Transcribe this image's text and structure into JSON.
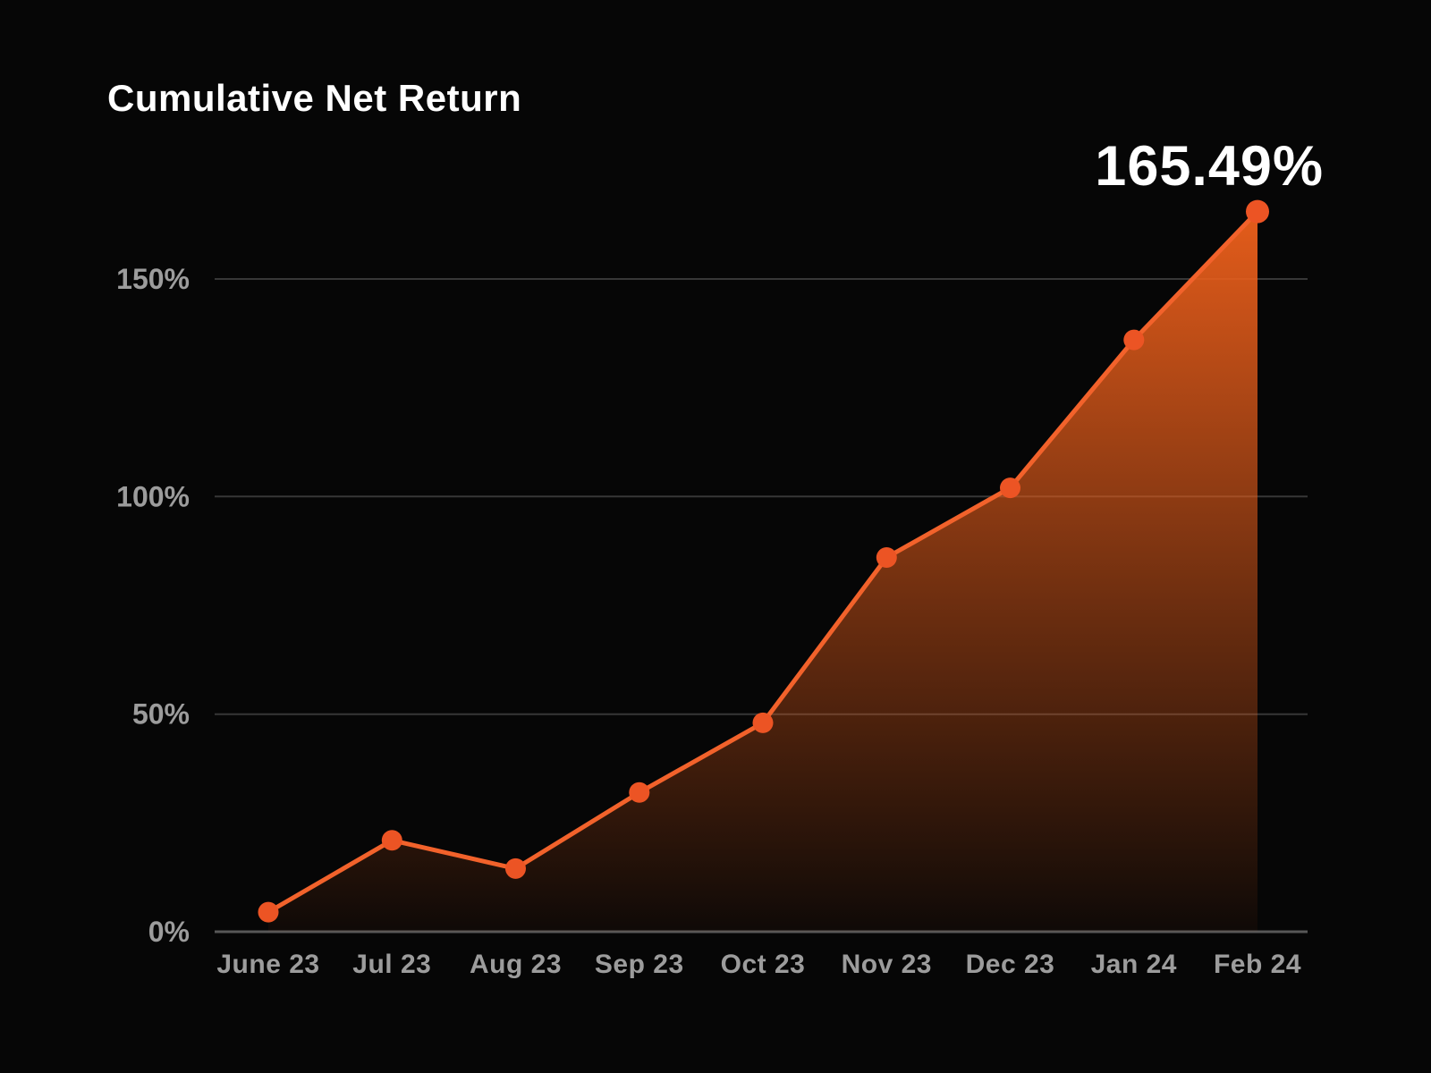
{
  "header": {
    "title": "Cumulative Net Return"
  },
  "highlight": {
    "final_return_label": "165.49%"
  },
  "chart_data": {
    "type": "area",
    "title": "Cumulative Net Return",
    "categories": [
      "June 23",
      "Jul 23",
      "Aug 23",
      "Sep 23",
      "Oct 23",
      "Nov 23",
      "Dec 23",
      "Jan 24",
      "Feb 24"
    ],
    "values": [
      4.5,
      21,
      14.5,
      32,
      48,
      86,
      102,
      136,
      165.49
    ],
    "final_value_label": "165.49%",
    "ylabel": "",
    "xlabel": "",
    "ytick_values": [
      0,
      50,
      100,
      150
    ],
    "ytick_labels": [
      "0%",
      "50%",
      "100%",
      "150%"
    ],
    "ylim": [
      0,
      170
    ],
    "grid": true,
    "legend": "none",
    "colors": {
      "background": "#060606",
      "title_text": "#ffffff",
      "highlight_text": "#ffffff",
      "line": "#f2622b",
      "dot": "#ec5424",
      "area_top": "#e95e1b",
      "grid_line": "#373737",
      "baseline": "#575757",
      "axis_text": "#9c9c9c"
    }
  }
}
